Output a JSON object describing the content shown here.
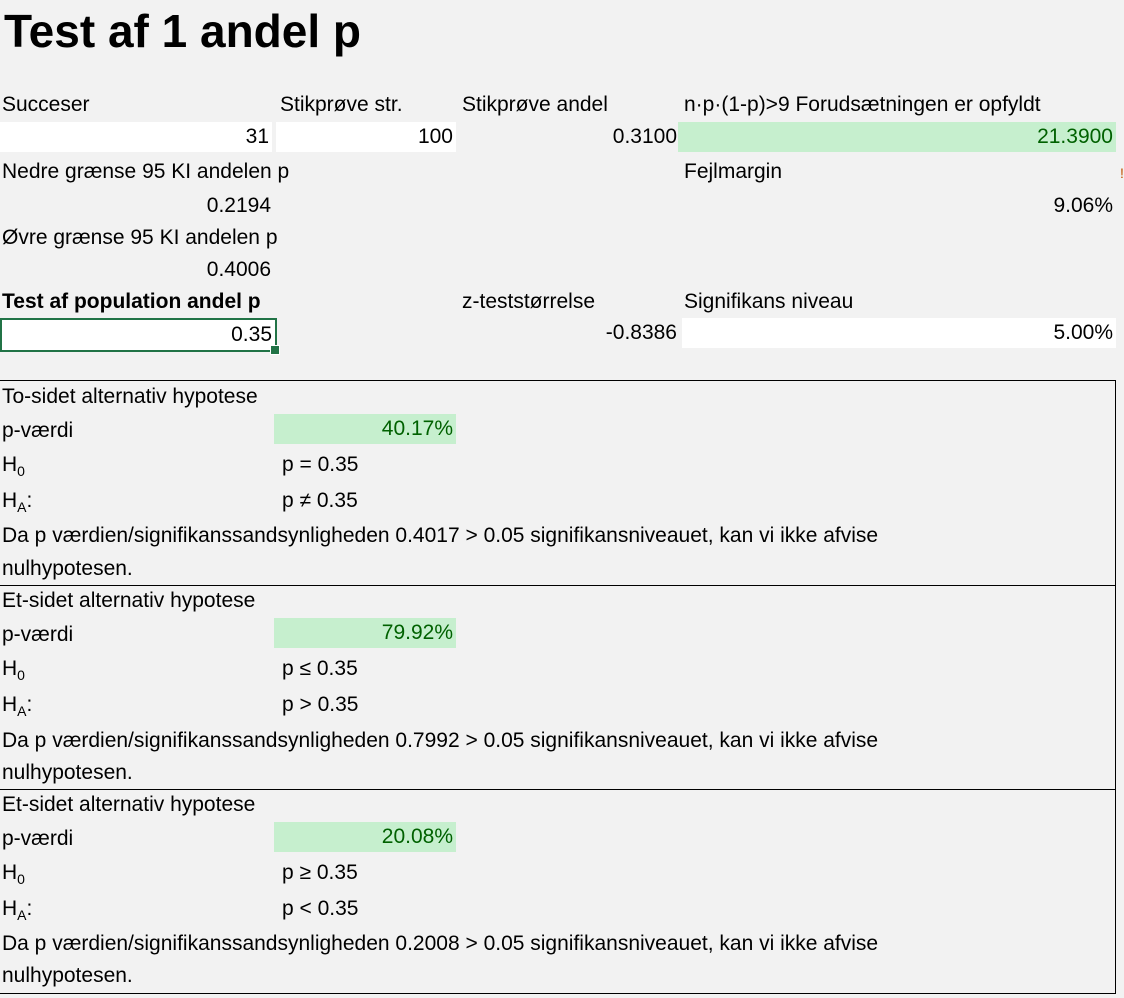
{
  "title": "Test af 1 andel p",
  "inputs": {
    "successes_label": "Succeser",
    "successes_value": "31",
    "sample_size_label": "Stikprøve str.",
    "sample_size_value": "100",
    "sample_prop_label": "Stikprøve andel",
    "sample_prop_value": "0.3100",
    "assumption_label": "n·p·(1-p)>9 Forudsætningen er opfyldt",
    "assumption_value": "21.3900"
  },
  "ci": {
    "lower_label": "Nedre grænse 95 KI andelen p",
    "lower_value": "0.2194",
    "margin_label": "Fejlmargin",
    "margin_value": "9.06%",
    "upper_label": "Øvre grænse 95 KI andelen p",
    "upper_value": "0.4006"
  },
  "test": {
    "population_label": "Test af population andel p",
    "population_value": "0.35",
    "z_label": "z-teststørrelse",
    "z_value": "-0.8386",
    "sig_label": "Signifikans niveau",
    "sig_value": "5.00%"
  },
  "hypotheses": [
    {
      "heading": "To-sidet alternativ hypotese",
      "p_label": "p-værdi",
      "p_value": "40.17%",
      "h0_letter": "H",
      "h0_sub": "0",
      "h0_value": "p = 0.35",
      "ha_letter": "H",
      "ha_sub": "A",
      "ha_colon": ":",
      "ha_value": "p ≠ 0.35",
      "conclusion_line1": "Da p værdien/signifikanssandsynligheden 0.4017 > 0.05 signifikansniveauet, kan vi ikke afvise",
      "conclusion_line2": "nulhypotesen."
    },
    {
      "heading": "Et-sidet alternativ hypotese",
      "p_label": "p-værdi",
      "p_value": "79.92%",
      "h0_letter": "H",
      "h0_sub": "0",
      "h0_value": "p ≤ 0.35",
      "ha_letter": "H",
      "ha_sub": "A",
      "ha_colon": ":",
      "ha_value": "p > 0.35",
      "conclusion_line1": "Da p værdien/signifikanssandsynligheden 0.7992 > 0.05 signifikansniveauet, kan vi ikke afvise",
      "conclusion_line2": "nulhypotesen."
    },
    {
      "heading": "Et-sidet alternativ hypotese",
      "p_label": "p-værdi",
      "p_value": "20.08%",
      "h0_letter": "H",
      "h0_sub": "0",
      "h0_value": "p ≥ 0.35",
      "ha_letter": "H",
      "ha_sub": "A",
      "ha_colon": ":",
      "ha_value": "p < 0.35",
      "conclusion_line1": "Da p værdien/signifikanssandsynligheden 0.2008 > 0.05 signifikansniveauet, kan vi ikke afvise",
      "conclusion_line2": "nulhypotesen."
    }
  ],
  "colors": {
    "good_fill": "#c6efce",
    "good_text": "#006100",
    "selection": "#217346"
  }
}
